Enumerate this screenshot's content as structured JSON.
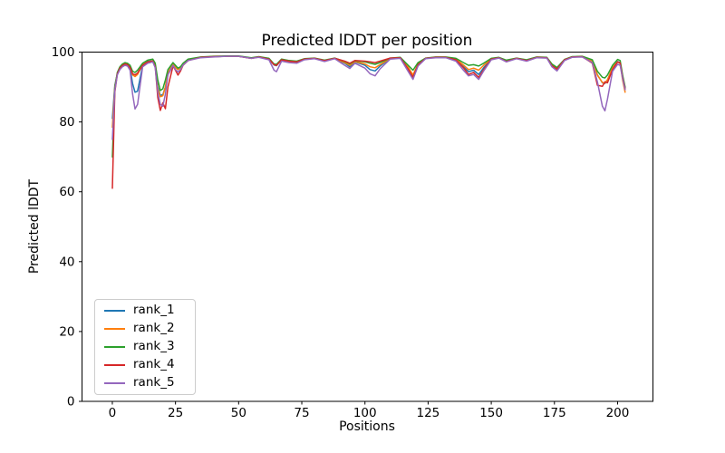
{
  "chart_data": {
    "type": "line",
    "title": "Predicted lDDT per position",
    "xlabel": "Positions",
    "ylabel": "Predicted lDDT",
    "xlim": [
      -12,
      214
    ],
    "ylim": [
      0,
      100
    ],
    "xticks": [
      0,
      25,
      50,
      75,
      100,
      125,
      150,
      175,
      200
    ],
    "yticks": [
      0,
      20,
      40,
      60,
      80,
      100
    ],
    "grid": false,
    "legend_position": "lower-left",
    "frame_color": "#000000",
    "x": [
      0,
      1,
      2,
      3,
      4,
      5,
      6,
      7,
      8,
      9,
      10,
      12,
      14,
      16,
      17,
      18,
      19,
      20,
      21,
      22,
      24,
      25,
      26,
      27,
      28,
      30,
      35,
      40,
      45,
      50,
      55,
      58,
      62,
      64,
      65,
      67,
      70,
      73,
      76,
      80,
      84,
      88,
      92,
      94,
      96,
      100,
      102,
      104,
      106,
      110,
      114,
      117,
      119,
      121,
      124,
      128,
      132,
      136,
      139,
      141,
      143,
      145,
      147,
      150,
      153,
      156,
      160,
      164,
      168,
      172,
      174,
      176,
      179,
      182,
      186,
      190,
      192,
      194,
      195,
      196,
      198,
      200,
      201,
      202,
      203
    ],
    "series": [
      {
        "name": "rank_1",
        "color": "#1f77b4",
        "values": [
          81,
          90.5,
          94,
          95.5,
          96.2,
          96.6,
          96.5,
          95.5,
          91,
          88.5,
          88.8,
          96.2,
          97.3,
          97.6,
          96.2,
          90,
          87.6,
          87.8,
          90,
          94,
          96.8,
          95.8,
          95,
          95.5,
          96.6,
          97.8,
          98.5,
          98.7,
          98.8,
          98.8,
          98.3,
          98.6,
          98,
          96.3,
          96.1,
          97.8,
          97.4,
          97.2,
          98,
          98.2,
          97.6,
          98.2,
          96.8,
          95.8,
          97.2,
          96.2,
          95,
          94.6,
          96,
          98.2,
          98.4,
          95.5,
          93.4,
          96.5,
          98.2,
          98.5,
          98.5,
          97.8,
          95.8,
          94.4,
          94.8,
          93.6,
          95.5,
          98,
          98.4,
          97.4,
          98.2,
          97.6,
          98.5,
          98.4,
          96.2,
          95.2,
          97.8,
          98.6,
          98.7,
          97.5,
          93.5,
          91.2,
          91,
          92,
          95.5,
          97.3,
          97,
          93,
          89.8
        ]
      },
      {
        "name": "rank_2",
        "color": "#ff7f0e",
        "values": [
          78.5,
          90,
          94,
          95.6,
          96.4,
          96.8,
          96.6,
          95.8,
          93.5,
          93,
          93.6,
          96.4,
          97.2,
          97.5,
          96,
          89.5,
          87.2,
          87.5,
          90,
          94,
          96.6,
          95.6,
          95,
          95.6,
          96.6,
          97.8,
          98.5,
          98.7,
          98.8,
          98.8,
          98.2,
          98.6,
          98,
          96.4,
          96.2,
          97.8,
          97.3,
          97.1,
          98,
          98.2,
          97.5,
          98.2,
          97,
          96.2,
          97.3,
          96.6,
          95.8,
          95.5,
          96.4,
          98.2,
          98.4,
          95.8,
          93.5,
          96.5,
          98.2,
          98.5,
          98.5,
          98,
          96.3,
          95.0,
          95.4,
          94.8,
          96.2,
          98.1,
          98.4,
          97.5,
          98.2,
          97.7,
          98.5,
          98.4,
          96.3,
          95.3,
          97.8,
          98.6,
          98.7,
          97.4,
          93.4,
          91.3,
          91.1,
          92.1,
          95.6,
          97.2,
          96.8,
          92,
          88.5
        ]
      },
      {
        "name": "rank_3",
        "color": "#2ca02c",
        "values": [
          70,
          89.5,
          94.2,
          95.8,
          96.6,
          97,
          96.8,
          96.2,
          94.5,
          94.2,
          94.8,
          96.8,
          97.7,
          98,
          96.8,
          92,
          89,
          89.5,
          92,
          95,
          97,
          96.2,
          95.4,
          95.8,
          96.8,
          98,
          98.6,
          98.8,
          98.9,
          98.9,
          98.4,
          98.7,
          98.2,
          96.6,
          96.5,
          98,
          97.6,
          97.4,
          98.1,
          98.3,
          97.7,
          98.3,
          97.3,
          96.6,
          97.5,
          97.2,
          96.8,
          96.5,
          97,
          98.3,
          98.5,
          96.3,
          94.8,
          97,
          98.3,
          98.6,
          98.6,
          98.2,
          97,
          96.2,
          96.4,
          96.0,
          96.8,
          98.2,
          98.5,
          97.7,
          98.3,
          97.8,
          98.6,
          98.5,
          96.6,
          95.6,
          97.9,
          98.7,
          98.8,
          97.8,
          94.5,
          92.8,
          92.6,
          93.4,
          96.2,
          97.9,
          97.6,
          93.5,
          90
        ]
      },
      {
        "name": "rank_4",
        "color": "#d62728",
        "values": [
          61,
          88.5,
          93.8,
          95.4,
          96.2,
          96.6,
          96.4,
          95.6,
          93.8,
          93.5,
          94,
          96.2,
          97.2,
          97.4,
          95.8,
          87,
          83.3,
          85.5,
          83.8,
          90,
          96,
          94.8,
          93.4,
          94.6,
          96.2,
          97.6,
          98.5,
          98.7,
          98.8,
          98.8,
          98.2,
          98.6,
          98,
          96.4,
          96.2,
          97.8,
          97.4,
          97.2,
          98,
          98.2,
          97.6,
          98.2,
          97.4,
          96.8,
          97.6,
          97.4,
          97.2,
          97.0,
          97.4,
          98.3,
          98.4,
          95.2,
          92.8,
          96.4,
          98.2,
          98.5,
          98.5,
          97.8,
          95.5,
          93.6,
          94.2,
          92.8,
          95,
          98,
          98.4,
          97.3,
          98.2,
          97.6,
          98.5,
          98.4,
          96.1,
          95.1,
          97.8,
          98.6,
          98.7,
          96.8,
          90.5,
          90.2,
          91.5,
          91.2,
          95,
          97.2,
          96.9,
          92.8,
          89.5
        ]
      },
      {
        "name": "rank_5",
        "color": "#9467bd",
        "values": [
          75,
          89,
          93.5,
          95,
          95.8,
          96.2,
          96,
          94.8,
          88,
          83.7,
          85,
          95.8,
          96.8,
          97.2,
          95.5,
          88.5,
          85,
          84.5,
          88,
          93.5,
          96.2,
          95,
          94.3,
          95,
          96.3,
          97.6,
          98.4,
          98.6,
          98.8,
          98.8,
          98.2,
          98.5,
          97.8,
          94.8,
          94.4,
          97.4,
          97,
          96.8,
          97.8,
          98.1,
          97.3,
          98.1,
          96.2,
          95.3,
          96.8,
          95.4,
          93.8,
          93.2,
          95.2,
          98,
          98.2,
          94.6,
          92.2,
          96,
          98.1,
          98.4,
          98.4,
          97.4,
          94.8,
          93.2,
          93.6,
          92.2,
          94.6,
          97.8,
          98.3,
          97.2,
          98.1,
          97.4,
          98.4,
          98.3,
          95.8,
          94.6,
          97.6,
          98.5,
          98.6,
          97,
          91.5,
          84.5,
          83.2,
          86.5,
          94.5,
          96.5,
          96.2,
          92.5,
          89.2
        ]
      }
    ]
  }
}
